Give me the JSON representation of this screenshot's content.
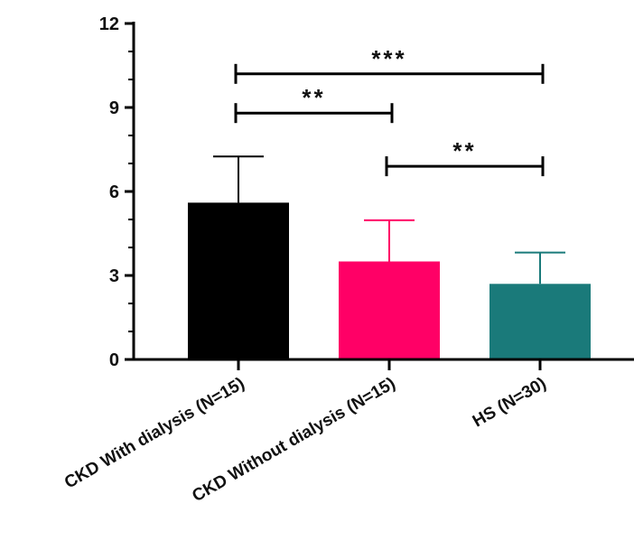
{
  "chart_data": {
    "type": "bar",
    "title": "",
    "xlabel": "",
    "ylabel": "",
    "ylim": [
      0,
      12
    ],
    "yticks": [
      0,
      3,
      6,
      9,
      12
    ],
    "yticks_labels": [
      "0",
      "3",
      "6",
      "9",
      "12"
    ],
    "minor_ticks_per_interval": 2,
    "categories": [
      "CKD With dialysis (N=15)",
      "CKD Without dialysis (N=15)",
      "HS (N=30)"
    ],
    "values": [
      5.6,
      3.5,
      2.7
    ],
    "error_upper": [
      7.25,
      4.97,
      3.82
    ],
    "colors": [
      "#000000",
      "#ff0066",
      "#1a7a7a"
    ],
    "significance": [
      {
        "from": 0,
        "to": 2,
        "label": "***",
        "y": 10.2
      },
      {
        "from": 0,
        "to": 1,
        "label": "**",
        "y": 8.8
      },
      {
        "from": 1,
        "to": 2,
        "label": "**",
        "y": 6.9
      }
    ],
    "grid": false,
    "legend": "none"
  }
}
